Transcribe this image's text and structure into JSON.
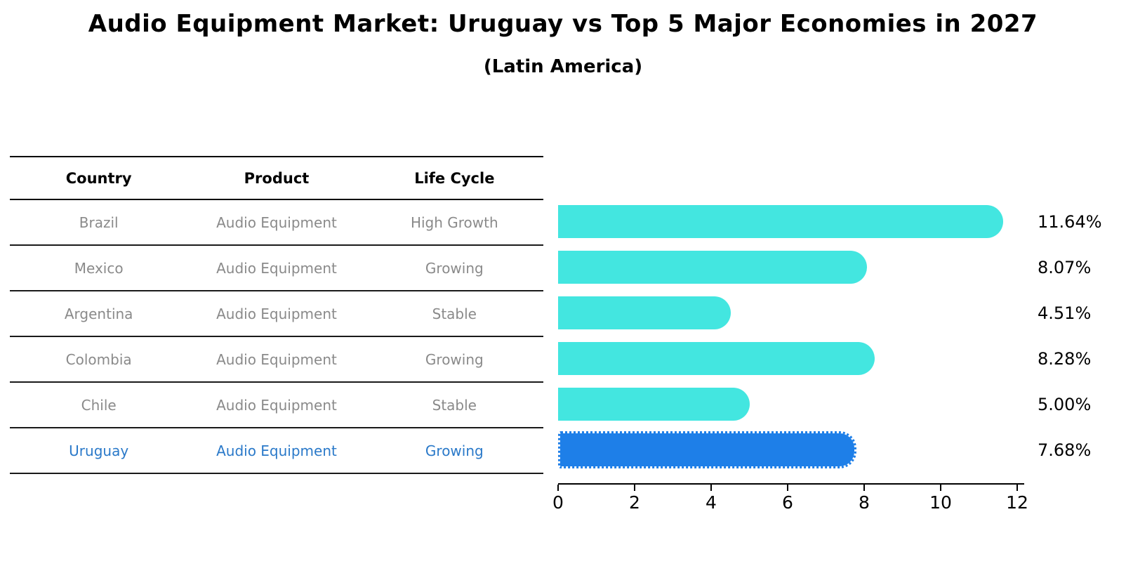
{
  "title": "Audio Equipment Market: Uruguay vs Top 5 Major Economies in 2027",
  "subtitle": "(Latin America)",
  "table": {
    "headers": [
      "Country",
      "Product",
      "Life Cycle"
    ],
    "rows": [
      {
        "country": "Brazil",
        "product": "Audio Equipment",
        "life_cycle": "High Growth",
        "highlight": false
      },
      {
        "country": "Mexico",
        "product": "Audio Equipment",
        "life_cycle": "Growing",
        "highlight": false
      },
      {
        "country": "Argentina",
        "product": "Audio Equipment",
        "life_cycle": "Stable",
        "highlight": false
      },
      {
        "country": "Colombia",
        "product": "Audio Equipment",
        "life_cycle": "Growing",
        "highlight": false
      },
      {
        "country": "Chile",
        "product": "Audio Equipment",
        "life_cycle": "Stable",
        "highlight": false
      },
      {
        "country": "Uruguay",
        "product": "Audio Equipment",
        "life_cycle": "Growing",
        "highlight": true
      }
    ]
  },
  "chart_data": {
    "type": "bar",
    "orientation": "horizontal",
    "categories": [
      "Brazil",
      "Mexico",
      "Argentina",
      "Colombia",
      "Chile",
      "Uruguay"
    ],
    "values": [
      11.64,
      8.07,
      4.51,
      8.28,
      5.0,
      7.68
    ],
    "value_labels": [
      "11.64%",
      "8.07%",
      "4.51%",
      "8.28%",
      "5.00%",
      "7.68%"
    ],
    "title": "Audio Equipment Market: Uruguay vs Top 5 Major Economies in 2027",
    "subtitle": "(Latin America)",
    "xlabel": "",
    "ylabel": "",
    "xlim": [
      0,
      12
    ],
    "xticks": [
      0,
      2,
      4,
      6,
      8,
      10,
      12
    ],
    "grid": false,
    "legend": "none",
    "highlight_index": 5,
    "bar_color": "#43E6E0",
    "highlight_bar_color": "#1E7FE8",
    "highlight_text_color": "#2A79C9",
    "row_text_color": "#8a8a8a",
    "label_color": "#000000"
  }
}
